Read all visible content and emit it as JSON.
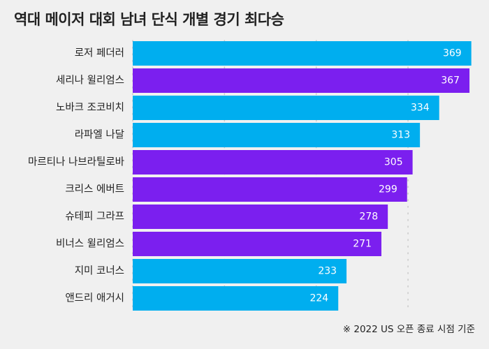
{
  "chart_data": {
    "type": "bar",
    "orientation": "horizontal",
    "title": "역대 메이저 대회 남녀 단식 개별 경기 최다승",
    "categories": [
      "로저 페더러",
      "세리나 윌리엄스",
      "노바크 조코비치",
      "라파엘 나달",
      "마르티나 나브라틸로바",
      "크리스 에버트",
      "슈테피 그라프",
      "비너스 윌리엄스",
      "지미 코너스",
      "앤드리 애거시"
    ],
    "values": [
      369,
      367,
      334,
      313,
      305,
      299,
      278,
      271,
      233,
      224
    ],
    "groups": [
      "male",
      "female",
      "male",
      "male",
      "female",
      "female",
      "female",
      "female",
      "male",
      "male"
    ],
    "xlim": [
      0,
      370
    ],
    "gridlines": [
      0,
      100,
      200,
      300
    ],
    "xlabel": "",
    "ylabel": "",
    "footnote": "※ 2022 US 오픈 종료 시점 기준"
  },
  "colors": {
    "male": "#00aeef",
    "female": "#7b1fef",
    "background": "#f0f0f0",
    "grid": "#c9c9c9",
    "text": "#222222",
    "value_text": "#ffffff"
  }
}
